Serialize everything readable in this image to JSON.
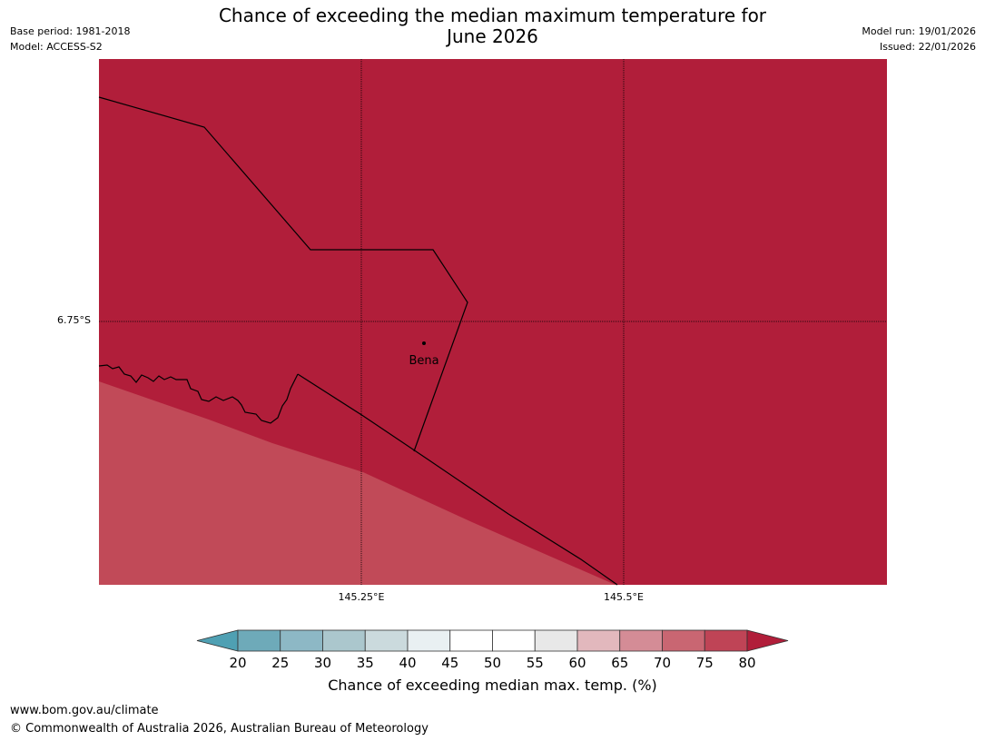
{
  "header": {
    "title_line1": "Chance of exceeding the median maximum temperature for",
    "title_line2": "June 2026",
    "base_period": "Base period: 1981-2018",
    "model": "Model: ACCESS-S2",
    "model_run": "Model run: 19/01/2026",
    "issued": "Issued: 22/01/2026"
  },
  "map": {
    "lat_label": "6.75°S",
    "lon_labels": [
      "145.25°E",
      "145.5°E"
    ],
    "place_label": "Bena",
    "colors": {
      "land_high": "#b11e3a",
      "sea_band": "#c14a58",
      "boundary": "#000000"
    }
  },
  "colorbar": {
    "label": "Chance of exceeding median max. temp. (%)",
    "ticks": [
      "20",
      "25",
      "30",
      "35",
      "40",
      "45",
      "50",
      "55",
      "60",
      "65",
      "70",
      "75",
      "80"
    ],
    "low_extend_color": "#4fa0b3",
    "high_extend_color": "#b11e3a",
    "colors": [
      "#6eaab9",
      "#8db8c5",
      "#abc7cd",
      "#cbdadd",
      "#e9f0f2",
      "#ffffff",
      "#ffffff",
      "#e8e8e8",
      "#e2b8bd",
      "#d48c96",
      "#c96672",
      "#bf4456"
    ]
  },
  "footer": {
    "url": "www.bom.gov.au/climate",
    "copyright": "© Commonwealth of Australia 2026, Australian Bureau of Meteorology"
  }
}
